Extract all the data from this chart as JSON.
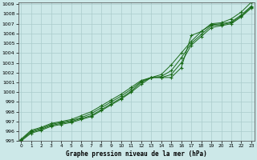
{
  "x": [
    0,
    1,
    2,
    3,
    4,
    5,
    6,
    7,
    8,
    9,
    10,
    11,
    12,
    13,
    14,
    15,
    16,
    17,
    18,
    19,
    20,
    21,
    22,
    23
  ],
  "line1": [
    995.1,
    995.9,
    996.2,
    996.6,
    996.8,
    997.0,
    997.3,
    997.6,
    998.2,
    998.8,
    999.4,
    1000.1,
    1001.0,
    1001.5,
    1001.5,
    1001.5,
    1002.5,
    1005.8,
    1006.2,
    1007.0,
    1007.1,
    1007.5,
    1008.2,
    1009.2
  ],
  "line2": [
    995.2,
    996.1,
    996.4,
    996.8,
    997.0,
    997.2,
    997.6,
    998.0,
    998.6,
    999.2,
    999.8,
    1000.5,
    1001.2,
    1001.5,
    1001.8,
    1002.8,
    1004.0,
    1005.2,
    1006.2,
    1006.9,
    1007.0,
    1007.2,
    1007.9,
    1008.8
  ],
  "line3": [
    995.1,
    996.0,
    996.3,
    996.7,
    996.9,
    997.1,
    997.4,
    997.8,
    998.4,
    999.0,
    999.6,
    1000.3,
    1001.1,
    1001.5,
    1001.6,
    1002.2,
    1003.5,
    1005.0,
    1005.9,
    1006.8,
    1006.9,
    1007.1,
    1007.8,
    1008.7
  ],
  "line4": [
    995.0,
    995.8,
    996.1,
    996.5,
    996.7,
    996.9,
    997.2,
    997.5,
    998.1,
    998.7,
    999.3,
    1000.0,
    1000.8,
    1001.5,
    1001.5,
    1001.8,
    1003.0,
    1004.8,
    1005.7,
    1006.6,
    1006.8,
    1007.0,
    1007.7,
    1008.6
  ],
  "line_color": "#1a6b1a",
  "marker_color": "#1a6b1a",
  "bg_color": "#cce8e8",
  "grid_color": "#aacccc",
  "title": "Graphe pression niveau de la mer (hPa)",
  "ylim_min": 995,
  "ylim_max": 1009,
  "xlim_min": 0,
  "xlim_max": 23
}
